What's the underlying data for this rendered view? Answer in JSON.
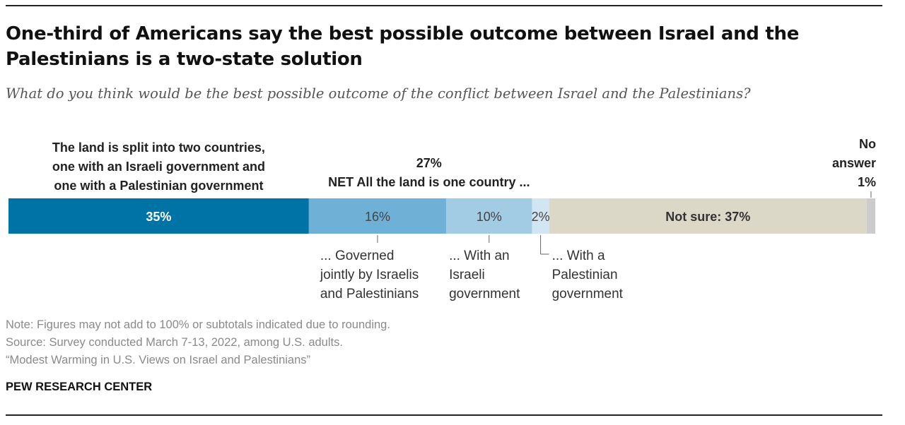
{
  "title": "One-third of Americans say the best possible outcome between Israel and the Palestinians is a two-state solution",
  "subtitle": "What do you think would be the best possible outcome of the conflict between Israel and the Palestinians?",
  "chart_data": {
    "type": "bar",
    "orientation": "horizontal-stacked",
    "segments": [
      {
        "key": "two_state",
        "value": 35,
        "label": "35%",
        "color": "#0073a6",
        "label_color": "#ffffff",
        "label_bold": true
      },
      {
        "key": "jointly",
        "value": 16,
        "label": "16%",
        "color": "#6fb1d6",
        "label_color": "#444444",
        "label_bold": false
      },
      {
        "key": "israeli_gov",
        "value": 10,
        "label": "10%",
        "color": "#a2cbe4",
        "label_color": "#444444",
        "label_bold": false
      },
      {
        "key": "palestinian_gov",
        "value": 2,
        "label": "2%",
        "color": "#d2e5f2",
        "label_color": "#444444",
        "label_bold": false
      },
      {
        "key": "not_sure",
        "value": 37,
        "label": "Not sure: 37%",
        "color": "#dcd8c7",
        "label_color": "#333333",
        "label_bold": true
      },
      {
        "key": "no_answer",
        "value": 1,
        "label": "",
        "color": "#cccccc",
        "label_color": "#333333",
        "label_bold": false
      }
    ],
    "annotations": {
      "two_state": [
        "The land is split into two countries,",
        "one with an Israeli government and",
        "one with a Palestinian government"
      ],
      "net_one_country": [
        "27%",
        "NET All the land is one country ..."
      ],
      "no_answer": [
        "No",
        "answer",
        "1%"
      ],
      "jointly": [
        "... Governed",
        "jointly by Israelis",
        "and Palestinians"
      ],
      "israeli_gov": [
        "... With an",
        "Israeli",
        "government"
      ],
      "palestinian_gov": [
        "... With a",
        "Palestinian",
        "government"
      ]
    }
  },
  "footer": {
    "note": "Note: Figures may not add to 100% or subtotals indicated due to rounding.",
    "source": "Source: Survey conducted March 7-13, 2022, among U.S. adults.",
    "report": "“Modest Warming in U.S. Views on Israel and Palestinians”",
    "org": "PEW RESEARCH CENTER"
  }
}
